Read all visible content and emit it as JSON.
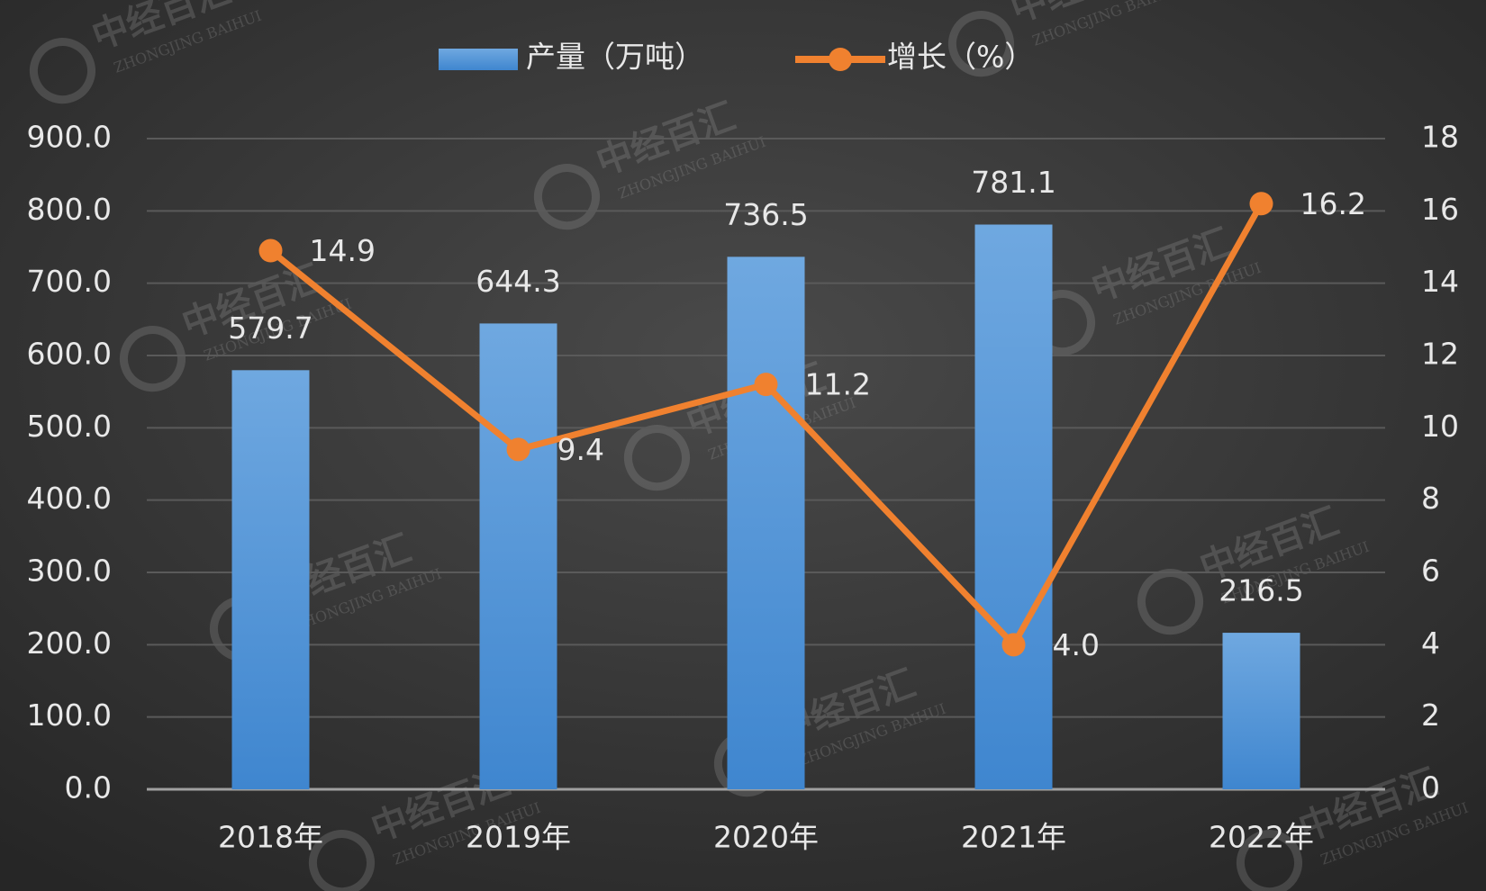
{
  "chart_data": {
    "type": "bar",
    "categories": [
      "2018年",
      "2019年",
      "2020年",
      "2021年",
      "2022年"
    ],
    "series": [
      {
        "name": "产量（万吨）",
        "type": "bar",
        "color": "#4a90d9",
        "values": [
          579.7,
          644.3,
          736.5,
          781.1,
          216.5
        ]
      },
      {
        "name": "增长（%）",
        "type": "line",
        "axis": "y2",
        "color": "#f0812f",
        "values": [
          14.9,
          9.4,
          11.2,
          4.0,
          16.2
        ],
        "value_labels": [
          "14.9",
          "9.4",
          "11.2",
          "4.0",
          "16.2"
        ]
      }
    ],
    "ylim": [
      0,
      900
    ],
    "yticks": [
      {
        "value": 0,
        "label": "0.0"
      },
      {
        "value": 100,
        "label": "100.0"
      },
      {
        "value": 200,
        "label": "200.0"
      },
      {
        "value": 300,
        "label": "300.0"
      },
      {
        "value": 400,
        "label": "400.0"
      },
      {
        "value": 500,
        "label": "500.0"
      },
      {
        "value": 600,
        "label": "600.0"
      },
      {
        "value": 700,
        "label": "700.0"
      },
      {
        "value": 800,
        "label": "800.0"
      },
      {
        "value": 900,
        "label": "900.0"
      }
    ],
    "y2lim": [
      0,
      18
    ],
    "y2ticks": [
      0,
      2,
      4,
      6,
      8,
      10,
      12,
      14,
      16,
      18
    ],
    "grid": true,
    "legend": "top",
    "watermark": "中经百汇",
    "watermark_sub": "ZHONGJING BAIHUI"
  }
}
